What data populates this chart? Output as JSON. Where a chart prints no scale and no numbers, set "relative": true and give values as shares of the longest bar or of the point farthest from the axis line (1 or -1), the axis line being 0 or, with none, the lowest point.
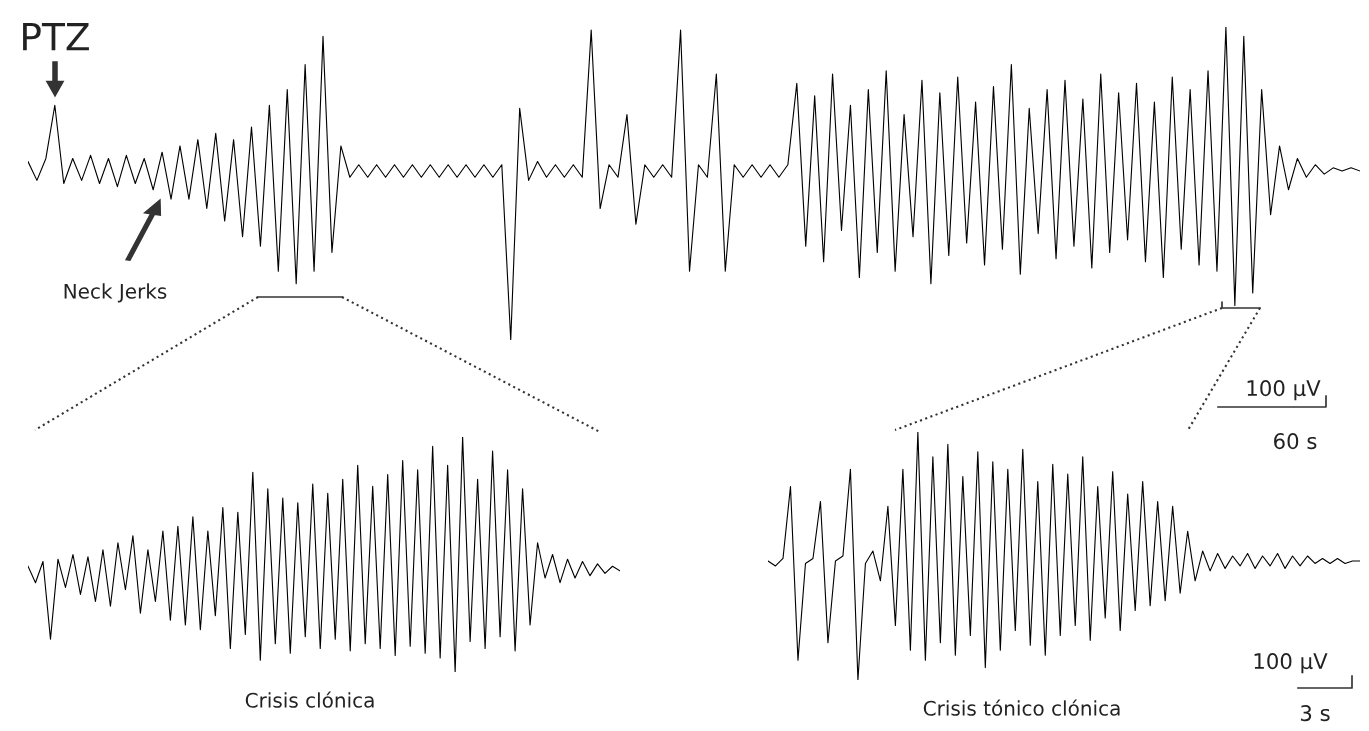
{
  "chart_data": [
    {
      "type": "line",
      "relative": true,
      "marker": "none",
      "line_style": "solid",
      "categories": [
        null,
        null,
        null,
        null,
        null,
        null,
        null,
        null,
        null,
        null,
        null,
        null,
        null,
        null,
        null,
        null,
        null,
        null,
        null,
        null,
        null,
        null,
        null,
        null,
        null,
        null,
        null,
        null,
        null,
        null,
        null,
        null,
        null,
        null,
        null,
        null,
        null,
        null,
        null,
        null,
        null,
        null,
        null,
        null,
        null,
        null,
        null,
        null,
        null,
        null,
        null,
        null,
        null,
        null,
        null,
        null,
        null,
        null,
        null,
        null,
        null,
        null,
        null,
        null,
        null,
        null,
        null,
        null,
        null,
        null,
        null,
        null,
        null,
        null,
        null,
        null,
        null,
        null,
        null,
        null,
        null,
        null,
        null,
        null,
        null,
        null,
        null,
        null,
        null,
        null,
        null,
        null,
        null,
        null,
        null,
        null,
        null,
        null,
        null,
        null,
        null,
        null,
        null,
        null,
        null,
        null,
        null,
        null,
        null,
        null,
        null,
        null,
        null,
        null,
        null,
        null,
        null,
        null,
        null,
        null,
        null,
        null,
        null,
        null,
        null,
        null,
        null,
        null,
        null,
        null,
        null,
        null,
        null,
        null,
        null,
        null,
        null,
        null,
        null,
        null,
        null,
        null,
        null,
        null,
        null,
        null,
        null,
        null,
        null,
        null
      ],
      "series": [
        {
          "color": "#000000",
          "values": [
            0.57,
            0.51,
            0.58,
            0.75,
            0.5,
            0.58,
            0.51,
            0.59,
            0.5,
            0.58,
            0.49,
            0.59,
            0.5,
            0.58,
            0.48,
            0.6,
            0.45,
            0.62,
            0.45,
            0.64,
            0.42,
            0.66,
            0.38,
            0.64,
            0.33,
            0.68,
            0.3,
            0.75,
            0.22,
            0.8,
            0.18,
            0.88,
            0.22,
            0.97,
            0.28,
            0.62,
            0.52,
            0.56,
            0.52,
            0.56,
            0.52,
            0.56,
            0.52,
            0.56,
            0.52,
            0.56,
            0.52,
            0.56,
            0.52,
            0.56,
            0.52,
            0.56,
            0.52,
            0.56,
            0.0,
            0.74,
            0.51,
            0.57,
            0.52,
            0.56,
            0.52,
            0.56,
            0.52,
            0.99,
            0.42,
            0.56,
            0.52,
            0.72,
            0.37,
            0.56,
            0.52,
            0.56,
            0.52,
            0.99,
            0.22,
            0.56,
            0.52,
            0.85,
            0.22,
            0.56,
            0.52,
            0.56,
            0.52,
            0.56,
            0.52,
            0.56,
            0.82,
            0.3,
            0.78,
            0.25,
            0.85,
            0.35,
            0.75,
            0.2,
            0.8,
            0.28,
            0.86,
            0.22,
            0.72,
            0.33,
            0.83,
            0.18,
            0.79,
            0.27,
            0.84,
            0.31,
            0.76,
            0.24,
            0.81,
            0.29,
            0.88,
            0.21,
            0.74,
            0.34,
            0.8,
            0.26,
            0.83,
            0.3,
            0.77,
            0.23,
            0.85,
            0.28,
            0.79,
            0.32,
            0.82,
            0.25,
            0.76,
            0.2,
            0.84,
            0.29,
            0.8,
            0.24,
            0.86,
            0.22,
            1.0,
            0.11,
            0.97,
            0.15,
            0.8,
            0.4,
            0.62,
            0.48,
            0.58,
            0.52,
            0.56,
            0.53,
            0.55,
            0.54,
            0.55,
            0.54
          ]
        }
      ],
      "annotations": [
        "PTZ",
        "Neck Jerks",
        "100 μV",
        "60 s"
      ]
    },
    {
      "type": "line",
      "relative": true,
      "marker": "none",
      "line_style": "solid",
      "categories": [
        null,
        null,
        null,
        null,
        null,
        null,
        null,
        null,
        null,
        null,
        null,
        null,
        null,
        null,
        null,
        null,
        null,
        null,
        null,
        null,
        null,
        null,
        null,
        null,
        null,
        null,
        null,
        null,
        null,
        null,
        null,
        null,
        null,
        null,
        null,
        null,
        null,
        null,
        null,
        null,
        null,
        null,
        null,
        null,
        null,
        null,
        null,
        null,
        null,
        null,
        null,
        null,
        null,
        null,
        null,
        null,
        null,
        null,
        null,
        null,
        null,
        null,
        null,
        null,
        null,
        null,
        null,
        null,
        null,
        null,
        null,
        null,
        null,
        null,
        null,
        null,
        null,
        null,
        null,
        null
      ],
      "series": [
        {
          "color": "#000000",
          "values": [
            0.45,
            0.38,
            0.47,
            0.14,
            0.48,
            0.36,
            0.5,
            0.33,
            0.49,
            0.3,
            0.52,
            0.28,
            0.55,
            0.35,
            0.58,
            0.25,
            0.52,
            0.3,
            0.6,
            0.22,
            0.62,
            0.2,
            0.66,
            0.18,
            0.6,
            0.24,
            0.7,
            0.1,
            0.68,
            0.16,
            0.85,
            0.05,
            0.78,
            0.12,
            0.74,
            0.08,
            0.72,
            0.15,
            0.8,
            0.1,
            0.76,
            0.14,
            0.82,
            0.09,
            0.88,
            0.12,
            0.79,
            0.1,
            0.84,
            0.07,
            0.9,
            0.11,
            0.86,
            0.08,
            0.96,
            0.06,
            0.88,
            0.0,
            1.0,
            0.13,
            0.82,
            0.1,
            0.94,
            0.15,
            0.86,
            0.09,
            0.78,
            0.2,
            0.55,
            0.4,
            0.5,
            0.38,
            0.48,
            0.4,
            0.47,
            0.41,
            0.46,
            0.42,
            0.45,
            0.43
          ]
        }
      ],
      "annotations": [
        "Crisis clónica"
      ]
    },
    {
      "type": "line",
      "relative": true,
      "marker": "none",
      "line_style": "solid",
      "categories": [
        null,
        null,
        null,
        null,
        null,
        null,
        null,
        null,
        null,
        null,
        null,
        null,
        null,
        null,
        null,
        null,
        null,
        null,
        null,
        null,
        null,
        null,
        null,
        null,
        null,
        null,
        null,
        null,
        null,
        null,
        null,
        null,
        null,
        null,
        null,
        null,
        null,
        null,
        null,
        null,
        null,
        null,
        null,
        null,
        null,
        null,
        null,
        null,
        null,
        null,
        null,
        null,
        null,
        null,
        null,
        null,
        null,
        null,
        null,
        null,
        null,
        null,
        null,
        null,
        null,
        null,
        null,
        null,
        null,
        null,
        null,
        null,
        null,
        null,
        null,
        null,
        null,
        null,
        null,
        null
      ],
      "series": [
        {
          "color": "#000000",
          "values": [
            0.48,
            0.46,
            0.49,
            0.78,
            0.08,
            0.47,
            0.49,
            0.72,
            0.15,
            0.48,
            0.5,
            0.85,
            0.0,
            0.47,
            0.52,
            0.4,
            0.7,
            0.22,
            0.85,
            0.12,
            1.0,
            0.08,
            0.9,
            0.15,
            0.95,
            0.1,
            0.82,
            0.18,
            0.92,
            0.05,
            0.88,
            0.12,
            0.85,
            0.2,
            0.93,
            0.14,
            0.8,
            0.1,
            0.87,
            0.18,
            0.83,
            0.22,
            0.9,
            0.16,
            0.78,
            0.25,
            0.84,
            0.2,
            0.75,
            0.28,
            0.8,
            0.3,
            0.72,
            0.32,
            0.7,
            0.35,
            0.6,
            0.4,
            0.52,
            0.44,
            0.51,
            0.45,
            0.5,
            0.46,
            0.51,
            0.45,
            0.5,
            0.46,
            0.51,
            0.45,
            0.5,
            0.46,
            0.5,
            0.47,
            0.49,
            0.47,
            0.49,
            0.47,
            0.48,
            0.48
          ]
        }
      ],
      "annotations": [
        "Crisis tónico clónica",
        "100 μV",
        "3 s"
      ]
    }
  ]
}
